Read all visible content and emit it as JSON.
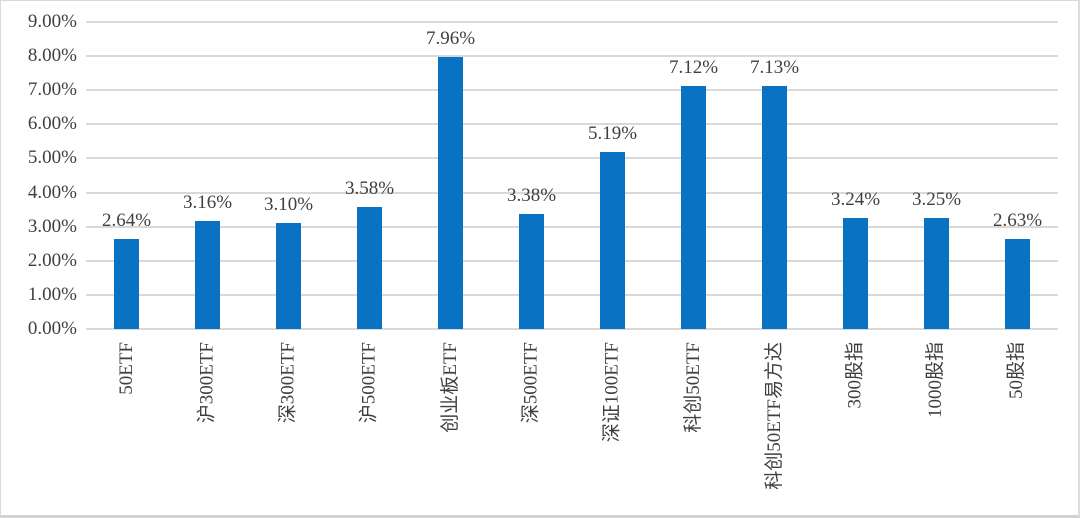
{
  "chart_data": {
    "type": "bar",
    "title": "",
    "xlabel": "",
    "ylabel": "",
    "categories": [
      "50ETF",
      "沪300ETF",
      "深300ETF",
      "沪500ETF",
      "创业板ETF",
      "深500ETF",
      "深证100ETF",
      "科创50ETF",
      "科创50ETF易方达",
      "300股指",
      "1000股指",
      "50股指"
    ],
    "values": [
      2.64,
      3.16,
      3.1,
      3.58,
      7.96,
      3.38,
      5.19,
      7.12,
      7.13,
      3.24,
      3.25,
      2.63
    ],
    "data_labels": [
      "2.64%",
      "3.16%",
      "3.10%",
      "3.58%",
      "7.96%",
      "3.38%",
      "5.19%",
      "7.12%",
      "7.13%",
      "3.24%",
      "3.25%",
      "2.63%"
    ],
    "y_tick_labels": [
      "0.00%",
      "1.00%",
      "2.00%",
      "3.00%",
      "4.00%",
      "5.00%",
      "6.00%",
      "7.00%",
      "8.00%",
      "9.00%"
    ],
    "ylim": [
      0,
      9
    ],
    "y_tick_step": 1,
    "grid": true,
    "legend_position": "none",
    "bar_color": "#0a72c3",
    "gridline_color": "#d9d9d9",
    "text_color": "#3f3f3f",
    "background_color": "#ffffff"
  }
}
